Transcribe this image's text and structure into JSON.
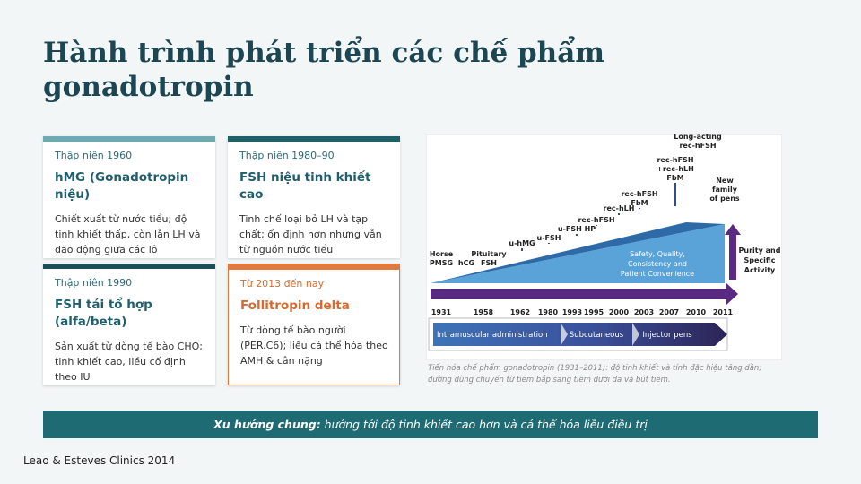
{
  "title": "Hành trình phát triển các chế phẩm gonadotropin",
  "cards": [
    {
      "period": "Thập niên 1960",
      "heading": "hMG (Gonadotropin niệu)",
      "body": "Chiết xuất từ nước tiểu; độ tinh khiết thấp, còn lẫn LH và dao động giữa các lô"
    },
    {
      "period": "Thập niên 1980–90",
      "heading": "FSH niệu tinh khiết cao",
      "body": "Tinh chế loại bỏ LH và tạp chất; ổn định hơn nhưng vẫn từ nguồn nước tiểu"
    },
    {
      "period": "Thập niên 1990",
      "heading": "FSH tái tổ hợp (alfa/beta)",
      "body": "Sản xuất từ dòng tế bào CHO; tinh khiết cao, liều cố định theo IU"
    },
    {
      "period": "Từ 2013 đến nay",
      "heading": "Follitropin delta",
      "body": "Từ dòng tế bào người (PER.C6); liều cá thể hóa theo AMH & cân nặng"
    }
  ],
  "figure": {
    "products": [
      [
        "Horse",
        "PMSG"
      ],
      [
        "hCG"
      ],
      [
        "Pituitary",
        "FSH"
      ],
      [
        "u-hMG"
      ],
      [
        "u-FSH"
      ],
      [
        "u-FSH HP"
      ],
      [
        "rec-hFSH"
      ],
      [
        "rec-hLH"
      ],
      [
        "rec-hFSH",
        "FbM"
      ],
      [
        "rec-hFSH",
        "+rec-hLH",
        "FbM"
      ],
      [
        "Long-acting",
        "rec-hFSH"
      ],
      [
        "New",
        "family",
        "of pens"
      ]
    ],
    "years": [
      "1931",
      "1958",
      "1962",
      "1980",
      "1993",
      "1995",
      "2000",
      "2003",
      "2007",
      "2010",
      "2011"
    ],
    "triangle_text": [
      "Safety, Quality,",
      "Consistency and",
      "Patient Convenience"
    ],
    "purity_label": [
      "Purity and",
      "Specific",
      "Activity"
    ],
    "routes": [
      "Intramuscular administration",
      "Subcutaneous",
      "Injector pens"
    ],
    "caption": "Tiến hóa chế phẩm gonadotropin (1931–2011): độ tinh khiết và tính đặc hiệu tăng dần; đường dùng chuyển từ tiêm bắp sang tiêm dưới da và bút tiêm."
  },
  "banner": {
    "bold": "Xu hướng chung:",
    "text": " hướng tới độ tinh khiết cao hơn và cá thể hóa liều điều trị"
  },
  "source": "Leao & Esteves Clinics 2014"
}
